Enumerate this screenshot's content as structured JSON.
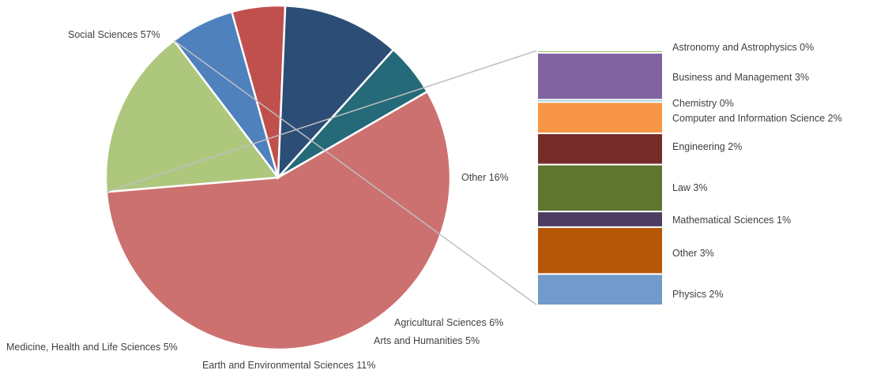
{
  "chart_data": {
    "type": "pie",
    "slices": [
      {
        "label": "Social Sciences 57%",
        "value": 57,
        "color": "#cd7170"
      },
      {
        "label": "Other 16%",
        "value": 16,
        "color": "#adc77c"
      },
      {
        "label": "Agricultural Sciences 6%",
        "value": 6,
        "color": "#4f81bd"
      },
      {
        "label": "Arts and Humanities 5%",
        "value": 5,
        "color": "#c0504d"
      },
      {
        "label": "Earth and Environmental Sciences 11%",
        "value": 11,
        "color": "#2c4d75"
      },
      {
        "label": "Medicine, Health and Life Sciences 5%",
        "value": 5,
        "color": "#246a78"
      }
    ],
    "breakdown_of": "Other 16%",
    "breakdown": [
      {
        "label": "Astronomy and Astrophysics 0%",
        "value": 0,
        "color": "#9bbb59"
      },
      {
        "label": "Business and Management 3%",
        "value": 3,
        "color": "#8064a2"
      },
      {
        "label": "Chemistry 0%",
        "value": 0,
        "color": "#4bacc6"
      },
      {
        "label": "Computer and Information Science 2%",
        "value": 2,
        "color": "#f79646"
      },
      {
        "label": "Engineering 2%",
        "value": 2,
        "color": "#772c2a"
      },
      {
        "label": "Law 3%",
        "value": 3,
        "color": "#5f7530"
      },
      {
        "label": "Mathematical Sciences 1%",
        "value": 1,
        "color": "#4d3b62"
      },
      {
        "label": "Other 3%",
        "value": 3,
        "color": "#b65708"
      },
      {
        "label": "Physics 2%",
        "value": 2,
        "color": "#729aca"
      }
    ]
  }
}
